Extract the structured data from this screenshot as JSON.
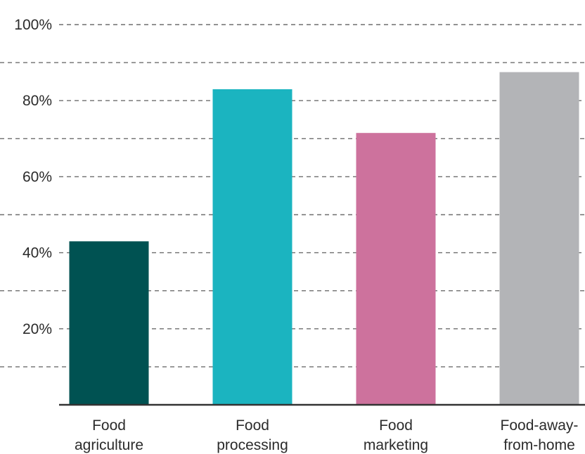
{
  "chart_data": {
    "type": "bar",
    "categories": [
      [
        "Food",
        "agriculture"
      ],
      [
        "Food",
        "processing"
      ],
      [
        "Food",
        "marketing"
      ],
      [
        "Food-away-",
        "from-home"
      ]
    ],
    "values": [
      43,
      83,
      71.5,
      87.5
    ],
    "colors": [
      "#005252",
      "#1bb4c0",
      "#cd729d",
      "#b3b4b7"
    ],
    "ylim": [
      0,
      100
    ],
    "ytick_values": [
      20,
      40,
      60,
      80,
      100
    ],
    "ytick_labels": [
      "20%",
      "40%",
      "60%",
      "80%",
      "100%"
    ],
    "grid": true,
    "grid_values": [
      10,
      20,
      30,
      40,
      50,
      60,
      70,
      80,
      90,
      100
    ],
    "title": "",
    "xlabel": "",
    "ylabel": ""
  }
}
